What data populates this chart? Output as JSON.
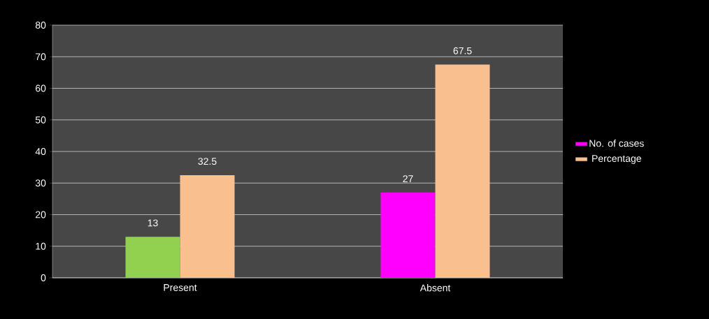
{
  "chart_data": {
    "type": "bar",
    "categories": [
      "Present",
      "Absent"
    ],
    "series": [
      {
        "name": "No. of cases",
        "color": "#ff00ff",
        "colors": [
          "#92d050",
          "#ff00ff"
        ],
        "values": [
          13,
          27
        ]
      },
      {
        "name": "Percentage",
        "color": "#fabf8f",
        "values": [
          32.5,
          67.5
        ]
      }
    ],
    "ylim": [
      0,
      80
    ],
    "yticks": [
      0,
      10,
      20,
      30,
      40,
      50,
      60,
      70,
      80
    ],
    "grid": "y",
    "legend": "right",
    "data_labels": true
  }
}
